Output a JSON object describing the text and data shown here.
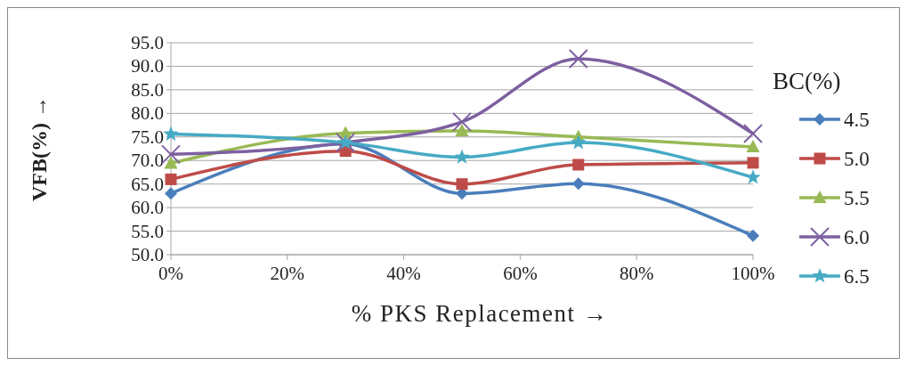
{
  "chart_data": {
    "type": "line",
    "xlabel": "% PKS Replacement →",
    "ylabel": "VFB(%) →",
    "legend_title": "BC(%)",
    "x": [
      0,
      0.3,
      0.5,
      0.7,
      1
    ],
    "xlim": [
      0,
      1
    ],
    "xticks": [
      {
        "value": 0,
        "label": "0%"
      },
      {
        "value": 0.2,
        "label": "20%"
      },
      {
        "value": 0.4,
        "label": "40%"
      },
      {
        "value": 0.6,
        "label": "60%"
      },
      {
        "value": 0.8,
        "label": "80%"
      },
      {
        "value": 1,
        "label": "100%"
      }
    ],
    "ylim": [
      50,
      95
    ],
    "yticks": [
      {
        "value": 50,
        "label": "50.0"
      },
      {
        "value": 55,
        "label": "55.0"
      },
      {
        "value": 60,
        "label": "60.0"
      },
      {
        "value": 65,
        "label": "65.0"
      },
      {
        "value": 70,
        "label": "70.0"
      },
      {
        "value": 75,
        "label": "75.0"
      },
      {
        "value": 80,
        "label": "80.0"
      },
      {
        "value": 85,
        "label": "85.0"
      },
      {
        "value": 90,
        "label": "90.0"
      },
      {
        "value": 95,
        "label": "95.0"
      }
    ],
    "grid": "y",
    "legend": "right",
    "series": [
      {
        "name": "4.5",
        "color": "#4a7ebb",
        "marker": "diamond",
        "values": [
          63,
          73.5,
          63,
          65.1,
          54
        ]
      },
      {
        "name": "5.0",
        "color": "#be4b48",
        "marker": "square",
        "values": [
          66,
          72,
          65,
          69.1,
          69.5
        ]
      },
      {
        "name": "5.5",
        "color": "#98b954",
        "marker": "triangle",
        "values": [
          69.4,
          75.8,
          76.3,
          75,
          72.9
        ]
      },
      {
        "name": "6.0",
        "color": "#7d60a0",
        "marker": "cross",
        "values": [
          71.3,
          73.8,
          78.2,
          91.6,
          75.7
        ]
      },
      {
        "name": "6.5",
        "color": "#46aac5",
        "marker": "star",
        "values": [
          75.6,
          73.8,
          70.7,
          73.8,
          66.4
        ]
      }
    ]
  }
}
